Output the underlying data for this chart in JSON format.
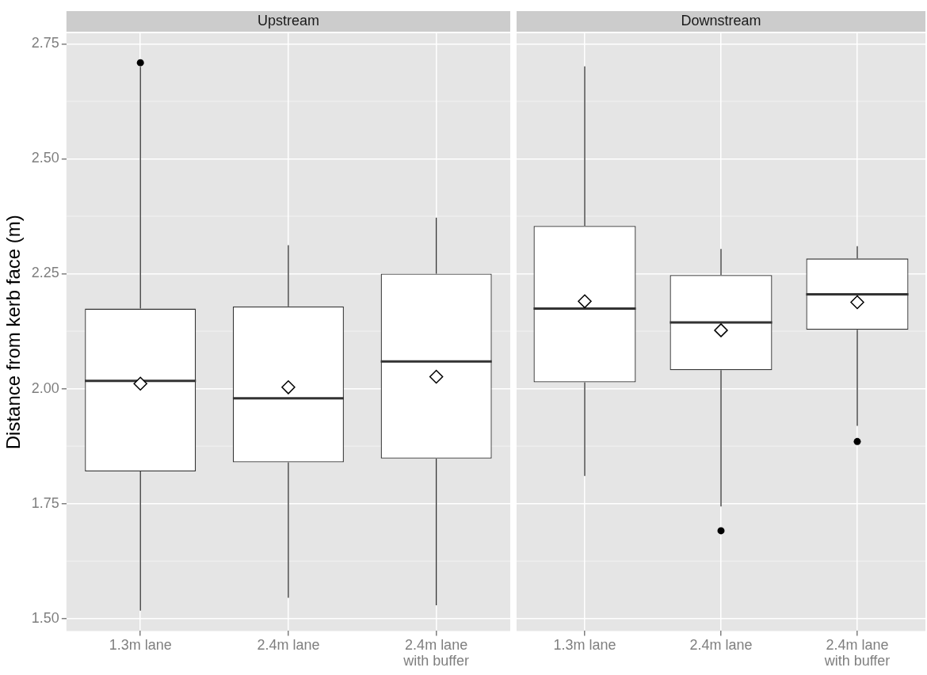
{
  "chart_data": [
    {
      "type": "box",
      "title": "Upstream",
      "ylabel": "Distance from kerb face (m)",
      "categories": [
        "1.3m lane",
        "2.4m lane",
        "2.4m lane with buffer"
      ],
      "boxes": [
        {
          "low": 1.517,
          "q1": 1.82,
          "median": 2.017,
          "q3": 2.174,
          "high": 2.7,
          "mean": 2.011,
          "outliers": [
            2.709
          ]
        },
        {
          "low": 1.545,
          "q1": 1.84,
          "median": 1.979,
          "q3": 2.179,
          "high": 2.312,
          "mean": 2.003
        },
        {
          "low": 1.529,
          "q1": 1.848,
          "median": 2.059,
          "q3": 2.25,
          "high": 2.372,
          "mean": 2.026
        }
      ],
      "ylim": [
        1.473,
        2.773
      ],
      "yticks": [
        {
          "value": 1.5,
          "label": "1.50"
        },
        {
          "value": 1.75,
          "label": "1.75"
        },
        {
          "value": 2.0,
          "label": "2.00"
        },
        {
          "value": 2.25,
          "label": "2.25"
        },
        {
          "value": 2.5,
          "label": "2.50"
        },
        {
          "value": 2.75,
          "label": "2.75"
        }
      ],
      "grid": true
    },
    {
      "type": "box",
      "title": "Downstream",
      "categories": [
        "1.3m lane",
        "2.4m lane",
        "2.4m lane with buffer"
      ],
      "boxes": [
        {
          "low": 1.81,
          "q1": 2.014,
          "median": 2.174,
          "q3": 2.354,
          "high": 2.701,
          "mean": 2.19
        },
        {
          "low": 1.744,
          "q1": 2.04,
          "median": 2.144,
          "q3": 2.247,
          "high": 2.304,
          "mean": 2.127,
          "outliers": [
            1.691
          ]
        },
        {
          "low": 1.919,
          "q1": 2.128,
          "median": 2.205,
          "q3": 2.283,
          "high": 2.31,
          "mean": 2.188,
          "outliers": [
            1.885
          ]
        }
      ],
      "ylim": [
        1.473,
        2.773
      ],
      "yticks": [
        1.5,
        1.75,
        2.0,
        2.25,
        2.5,
        2.75
      ],
      "grid": true,
      "tick_labels": "x"
    }
  ]
}
